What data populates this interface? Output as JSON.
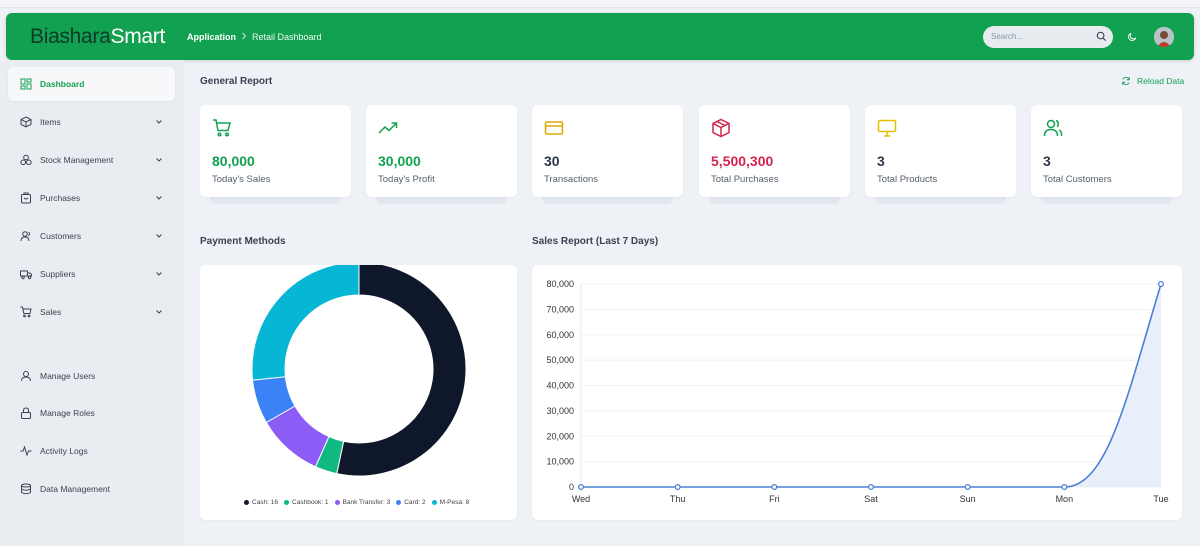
{
  "header": {
    "logo_part1": "Biashara",
    "logo_part2": "Smart",
    "breadcrumb_first": "Application",
    "breadcrumb_second": "Retail Dashboard",
    "search_placeholder": "Search..."
  },
  "sidebar": {
    "items": [
      {
        "label": "Dashboard",
        "icon": "dashboard-icon"
      },
      {
        "label": "Items",
        "icon": "box-icon"
      },
      {
        "label": "Stock Management",
        "icon": "stock-icon"
      },
      {
        "label": "Purchases",
        "icon": "purchases-icon"
      },
      {
        "label": "Customers",
        "icon": "customers-icon"
      },
      {
        "label": "Suppliers",
        "icon": "truck-icon"
      },
      {
        "label": "Sales",
        "icon": "cart-icon"
      },
      {
        "label": "Manage Users",
        "icon": "user-icon"
      },
      {
        "label": "Manage Roles",
        "icon": "lock-icon"
      },
      {
        "label": "Activity Logs",
        "icon": "activity-icon"
      },
      {
        "label": "Data Management",
        "icon": "database-icon"
      }
    ]
  },
  "main": {
    "general_report_title": "General Report",
    "reload_label": "Reload Data",
    "payment_methods_title": "Payment Methods",
    "sales_report_title": "Sales Report (Last 7 Days)"
  },
  "stats": [
    {
      "value": "80,000",
      "label": "Today's Sales",
      "color": "#12a150",
      "icon": "cart-icon"
    },
    {
      "value": "30,000",
      "label": "Today's Profit",
      "color": "#12a150",
      "icon": "trending-up-icon"
    },
    {
      "value": "30",
      "label": "Transactions",
      "color": "#2d3748",
      "icon": "credit-card-icon"
    },
    {
      "value": "5,500,300",
      "label": "Total Purchases",
      "color": "#d6244f",
      "icon": "package-icon"
    },
    {
      "value": "3",
      "label": "Total Products",
      "color": "#2d3748",
      "icon": "monitor-icon"
    },
    {
      "value": "3",
      "label": "Total Customers",
      "color": "#2d3748",
      "icon": "users-icon"
    }
  ],
  "chart_data": [
    {
      "type": "pie",
      "variant": "doughnut",
      "labels": [
        "Cash",
        "Cashbook",
        "Bank Transfer",
        "Card",
        "M-Pesa"
      ],
      "values": [
        16,
        1,
        3,
        2,
        8
      ],
      "colors": [
        "#0f172a",
        "#10b981",
        "#8b5cf6",
        "#3b82f6",
        "#06b6d4"
      ],
      "legend": [
        "Cash: 16",
        "Cashbook: 1",
        "Bank Transfer: 3",
        "Card: 2",
        "M-Pesa: 8"
      ],
      "legend_position": "bottom"
    },
    {
      "type": "area",
      "categories": [
        "Wed",
        "Thu",
        "Fri",
        "Sat",
        "Sun",
        "Mon",
        "Tue"
      ],
      "values": [
        0,
        0,
        0,
        0,
        0,
        0,
        80000
      ],
      "ylim": [
        0,
        80000
      ],
      "yticks": [
        0,
        10000,
        20000,
        30000,
        40000,
        50000,
        60000,
        70000,
        80000
      ],
      "ytick_labels": [
        "0",
        "10,000",
        "20,000",
        "30,000",
        "40,000",
        "50,000",
        "60,000",
        "70,000",
        "80,000"
      ],
      "line_color": "#4a80d4",
      "fill_color": "#e8effb",
      "grid": true
    }
  ]
}
